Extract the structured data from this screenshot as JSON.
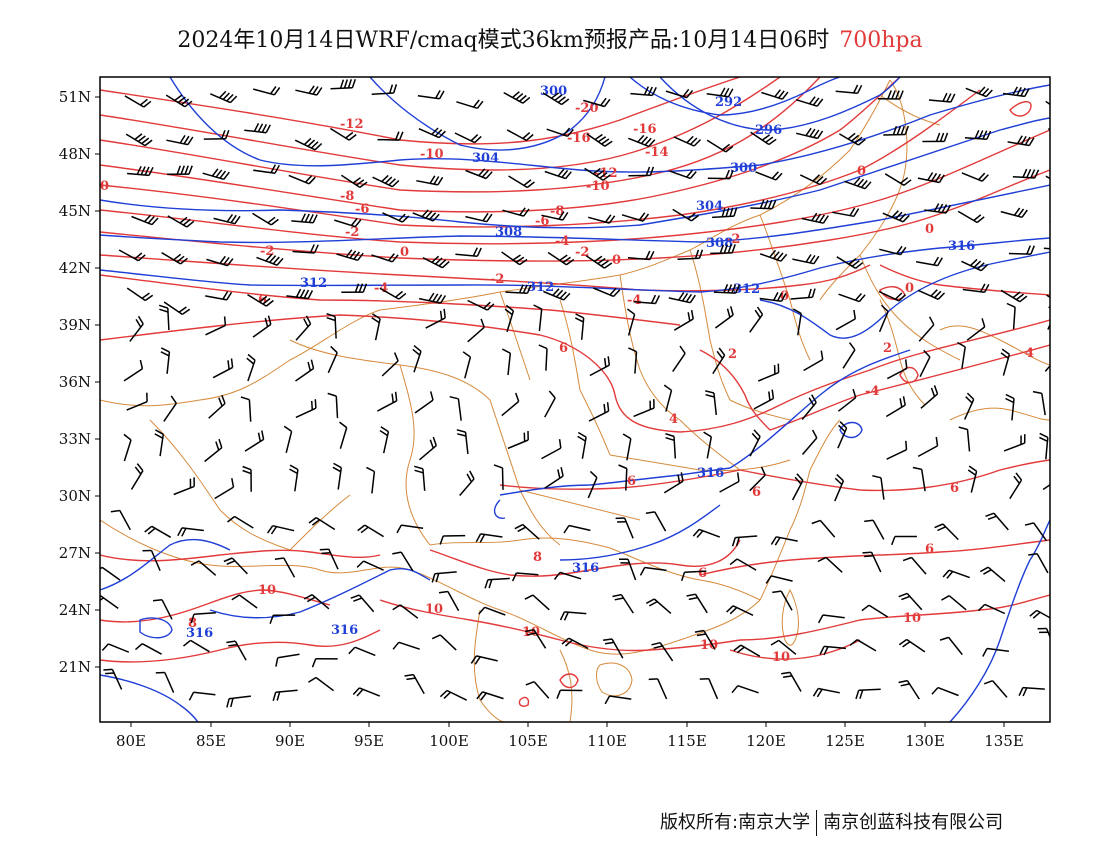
{
  "title": {
    "main": "2024年10月14日WRF/cmaq模式36km预报产品:10月14日06时",
    "level": "700hpa"
  },
  "axes": {
    "lat_labels": [
      "51N",
      "48N",
      "45N",
      "42N",
      "39N",
      "36N",
      "33N",
      "30N",
      "27N",
      "24N",
      "21N"
    ],
    "lon_labels": [
      "80E",
      "85E",
      "90E",
      "95E",
      "100E",
      "105E",
      "110E",
      "115E",
      "120E",
      "125E",
      "130E",
      "135E"
    ]
  },
  "contour_labels": {
    "temperature": [
      "-20",
      "-16",
      "-16",
      "-14",
      "-12",
      "-12",
      "-10",
      "-10",
      "-8",
      "-8",
      "-6",
      "-6",
      "-4",
      "-4",
      "-4",
      "-4",
      "-2",
      "-2",
      "-2",
      "-2",
      "-2",
      "0",
      "0",
      "0",
      "0",
      "0",
      "0",
      "0",
      "2",
      "2",
      "2",
      "4",
      "4",
      "4",
      "6",
      "6",
      "6",
      "6",
      "6",
      "6",
      "6",
      "8",
      "8",
      "8",
      "8",
      "10",
      "10",
      "10",
      "10",
      "10",
      "10",
      "4"
    ],
    "geopotential": [
      "300",
      "296",
      "292",
      "304",
      "300",
      "304",
      "308",
      "308",
      "312",
      "312",
      "312",
      "316",
      "316",
      "316",
      "316",
      "316",
      "316",
      "316"
    ]
  },
  "colors": {
    "temperature_contour": "#e23a3a",
    "geopotential_contour": "#1f3fd6",
    "border": "#d68a3c",
    "wind_barb": "#000000",
    "frame": "#000000"
  },
  "footer": {
    "left": "版权所有:南京大学",
    "right": "南京创蓝科技有限公司"
  }
}
